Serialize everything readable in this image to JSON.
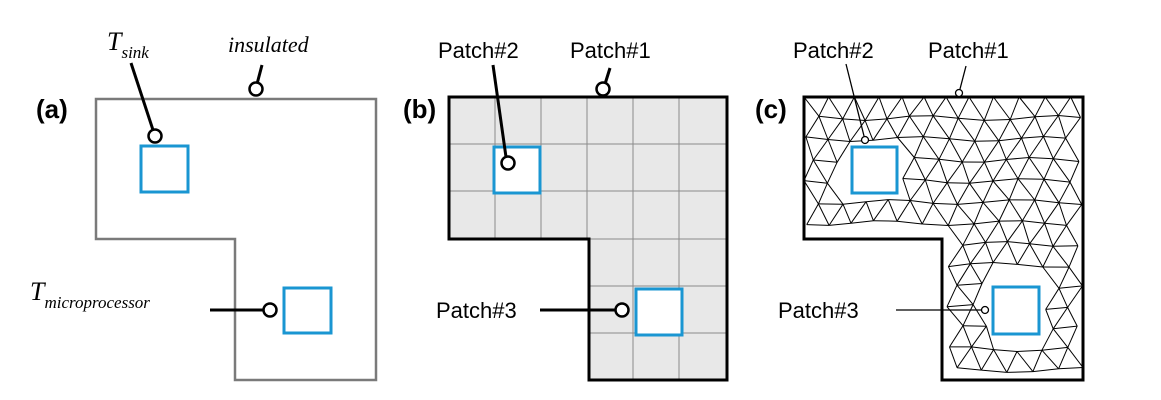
{
  "colors": {
    "boundary_a": "#7a7a7a",
    "boundary_bc": "#000000",
    "patch_square": "#1a96d2",
    "grid_fill": "#e8e8e8",
    "grid_line": "#8a8a8a",
    "mesh_line": "#000000"
  },
  "panel_a": {
    "label": "(a)",
    "t_sink_main": "T",
    "t_sink_sub": "sink",
    "insulated": "insulated",
    "t_micro_main": "T",
    "t_micro_sub": "microprocessor"
  },
  "panel_b": {
    "label": "(b)",
    "patch1": "Patch#1",
    "patch2": "Patch#2",
    "patch3": "Patch#3"
  },
  "panel_c": {
    "label": "(c)",
    "patch1": "Patch#1",
    "patch2": "Patch#2",
    "patch3": "Patch#3"
  }
}
